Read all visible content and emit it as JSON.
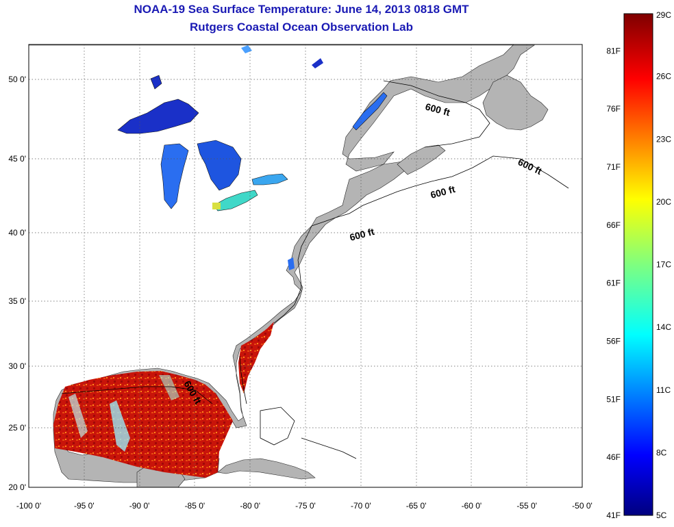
{
  "title": "NOAA-19 Sea Surface Temperature:  June 14, 2013 0818 GMT",
  "subtitle": "Rutgers Coastal Ocean Observation Lab",
  "map": {
    "lon_range": [
      -100,
      -50
    ],
    "lat_range": [
      20,
      52.5
    ],
    "lat_ticks": [
      {
        "value": 50,
        "label": "50 0'"
      },
      {
        "value": 45,
        "label": "45 0'"
      },
      {
        "value": 40,
        "label": "40 0'"
      },
      {
        "value": 35,
        "label": "35 0'"
      },
      {
        "value": 30,
        "label": "30 0'"
      },
      {
        "value": 25,
        "label": "25 0'"
      },
      {
        "value": 20,
        "label": "20 0'"
      }
    ],
    "lon_ticks": [
      {
        "value": -100,
        "label": "-100 0'"
      },
      {
        "value": -95,
        "label": "-95 0'"
      },
      {
        "value": -90,
        "label": "-90 0'"
      },
      {
        "value": -85,
        "label": "-85 0'"
      },
      {
        "value": -80,
        "label": "-80 0'"
      },
      {
        "value": -75,
        "label": "-75 0'"
      },
      {
        "value": -70,
        "label": "-70 0'"
      },
      {
        "value": -65,
        "label": "-65 0'"
      },
      {
        "value": -60,
        "label": "-60 0'"
      },
      {
        "value": -55,
        "label": "-55 0'"
      },
      {
        "value": -50,
        "label": "-50 0'"
      }
    ],
    "isobath_label": "600 ft",
    "colors": {
      "land": "#b4b4b4",
      "ocean": "#ffffff",
      "grid": "#555555"
    }
  },
  "colorbar": {
    "celsius_labels": [
      {
        "value": 29,
        "label": "29C"
      },
      {
        "value": 26,
        "label": "26C"
      },
      {
        "value": 23,
        "label": "23C"
      },
      {
        "value": 20,
        "label": "20C"
      },
      {
        "value": 17,
        "label": "17C"
      },
      {
        "value": 14,
        "label": "14C"
      },
      {
        "value": 11,
        "label": "11C"
      },
      {
        "value": 8,
        "label": "8C"
      },
      {
        "value": 5,
        "label": "5C"
      }
    ],
    "fahrenheit_labels": [
      {
        "value": 81,
        "label": "81F"
      },
      {
        "value": 76,
        "label": "76F"
      },
      {
        "value": 71,
        "label": "71F"
      },
      {
        "value": 66,
        "label": "66F"
      },
      {
        "value": 61,
        "label": "61F"
      },
      {
        "value": 56,
        "label": "56F"
      },
      {
        "value": 51,
        "label": "51F"
      },
      {
        "value": 46,
        "label": "46F"
      },
      {
        "value": 41,
        "label": "41F"
      }
    ],
    "range_c": [
      5,
      29
    ]
  }
}
